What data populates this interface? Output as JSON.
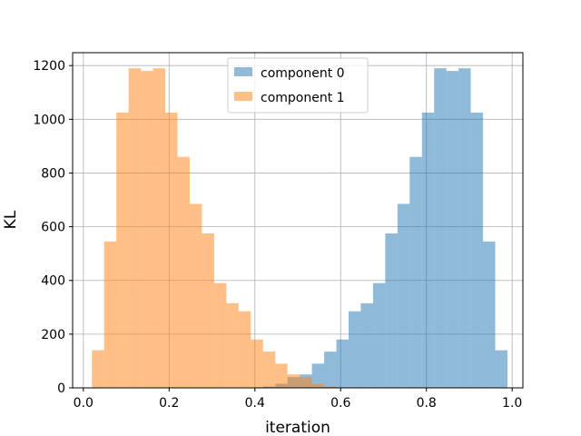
{
  "chart_data": {
    "type": "bar",
    "subtype": "histogram",
    "title": "",
    "xlabel": "iteration",
    "ylabel": "KL",
    "xlim": [
      -0.025,
      1.025
    ],
    "ylim": [
      0,
      1200
    ],
    "xticks": [
      0.0,
      0.2,
      0.4,
      0.6,
      0.8,
      1.0
    ],
    "xtick_labels": [
      "0.0",
      "0.2",
      "0.4",
      "0.6",
      "0.8",
      "1.0"
    ],
    "yticks": [
      0,
      200,
      400,
      600,
      800,
      1000,
      1200
    ],
    "ytick_labels": [
      "0",
      "200",
      "400",
      "600",
      "800",
      "1000",
      "1200"
    ],
    "grid": true,
    "legend_position": "top-center",
    "bin_edges": [
      0.02,
      0.0485,
      0.077,
      0.1055,
      0.134,
      0.1625,
      0.191,
      0.2195,
      0.248,
      0.2765,
      0.305,
      0.3335,
      0.362,
      0.3905,
      0.419,
      0.4475,
      0.476,
      0.5045,
      0.533,
      0.5615,
      0.59,
      0.6185,
      0.647,
      0.6755,
      0.704,
      0.7325,
      0.761,
      0.7895,
      0.818,
      0.8465,
      0.875,
      0.9035,
      0.932,
      0.9605,
      0.989
    ],
    "series": [
      {
        "name": "component 0",
        "color": "#1f77b4",
        "opacity": 0.5,
        "values": [
          0,
          0,
          0,
          0,
          0,
          0,
          0,
          0,
          0,
          0,
          0,
          0,
          0,
          0,
          5,
          15,
          40,
          50,
          90,
          135,
          180,
          285,
          315,
          390,
          575,
          685,
          860,
          1025,
          1190,
          1180,
          1190,
          1025,
          545,
          140
        ]
      },
      {
        "name": "component 1",
        "color": "#ff7f0e",
        "opacity": 0.5,
        "values": [
          140,
          545,
          1025,
          1190,
          1180,
          1190,
          1025,
          860,
          685,
          575,
          390,
          315,
          285,
          180,
          135,
          90,
          50,
          40,
          15,
          5,
          0,
          0,
          0,
          0,
          0,
          0,
          0,
          0,
          0,
          0,
          0,
          0,
          0,
          0
        ]
      }
    ],
    "legend": [
      "component 0",
      "component 1"
    ]
  }
}
